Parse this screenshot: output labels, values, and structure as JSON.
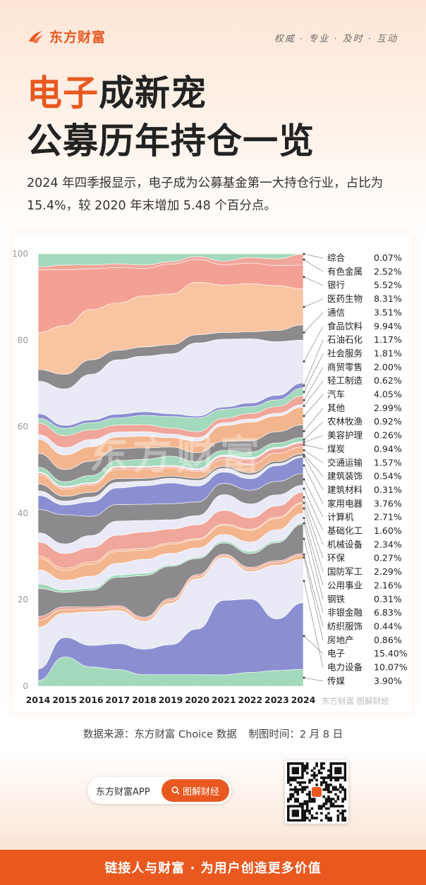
{
  "brand": {
    "name": "东方财富",
    "slogan": "权威 · 专业 · 及时 · 互动"
  },
  "title": {
    "highlight": "电子",
    "line1_rest": "成新宠",
    "line2": "公募历年持仓一览"
  },
  "subtitle": "2024 年四季报显示，电子成为公募基金第一大持仓行业，占比为 15.4%，较 2020 年末增加 5.48 个百分点。",
  "chart_data": {
    "type": "area",
    "stacked": true,
    "x": [
      "2014",
      "2015",
      "2016",
      "2017",
      "2018",
      "2019",
      "2020",
      "2021",
      "2022",
      "2023",
      "2024"
    ],
    "ylim": [
      0,
      100
    ],
    "yticks": [
      0,
      20,
      40,
      60,
      80,
      100
    ],
    "watermark": "东方财富",
    "credit": "东方财富 图解财经",
    "layers": [
      {
        "name": "传媒",
        "color": "#a3d9bc",
        "values": [
          1.2,
          6.0,
          4.0,
          3.5,
          2.5,
          2.5,
          2.5,
          2.5,
          3.0,
          3.5,
          3.9
        ]
      },
      {
        "name": "电子",
        "color": "#8b8fd1",
        "values": [
          2.5,
          4.0,
          4.5,
          5.5,
          5.5,
          6.5,
          10.0,
          16.5,
          16.0,
          11.5,
          15.4
        ]
      },
      {
        "name": "电力设备",
        "color": "#eaeaf6",
        "values": [
          9.0,
          5.0,
          7.0,
          7.0,
          6.0,
          9.0,
          11.0,
          9.5,
          6.0,
          12.0,
          10.07
        ]
      },
      {
        "name": "房地产",
        "color": "#f3b58e",
        "values": [
          1.5,
          0.8,
          0.6,
          0.6,
          0.5,
          0.6,
          0.5,
          0.4,
          0.5,
          0.6,
          0.86
        ]
      },
      {
        "name": "纺织服饰",
        "color": "#f0a69a",
        "values": [
          0.8,
          0.5,
          0.4,
          0.4,
          0.4,
          0.4,
          0.4,
          0.3,
          0.4,
          0.4,
          0.44
        ]
      },
      {
        "name": "非银金融",
        "color": "#8c8a8c",
        "values": [
          6.0,
          3.0,
          3.5,
          6.0,
          9.0,
          7.0,
          3.5,
          2.5,
          3.0,
          4.0,
          6.83
        ]
      },
      {
        "name": "钢铁",
        "color": "#a3d9bc",
        "values": [
          1.0,
          0.5,
          0.4,
          0.5,
          0.5,
          0.3,
          0.3,
          0.4,
          0.5,
          0.4,
          0.31
        ]
      },
      {
        "name": "公用事业",
        "color": "#eaeaf6",
        "values": [
          3.0,
          2.0,
          2.5,
          2.5,
          3.0,
          2.5,
          2.0,
          1.5,
          2.0,
          2.5,
          2.16
        ]
      },
      {
        "name": "国防军工",
        "color": "#f3b58e",
        "values": [
          2.5,
          2.0,
          2.5,
          2.5,
          2.0,
          2.0,
          1.8,
          2.0,
          2.5,
          2.5,
          2.29
        ]
      },
      {
        "name": "环保",
        "color": "#f3b58e",
        "values": [
          0.5,
          0.5,
          0.5,
          0.4,
          0.4,
          0.3,
          0.3,
          0.3,
          0.3,
          0.3,
          0.27
        ]
      },
      {
        "name": "机械设备",
        "color": "#f0a69a",
        "values": [
          3.0,
          3.0,
          3.0,
          3.0,
          3.5,
          3.0,
          3.0,
          3.0,
          2.5,
          2.5,
          2.34
        ]
      },
      {
        "name": "基础化工",
        "color": "#eaeaf6",
        "values": [
          2.0,
          2.0,
          2.5,
          3.0,
          2.5,
          2.0,
          2.0,
          3.5,
          3.0,
          2.5,
          1.6
        ]
      },
      {
        "name": "计算机",
        "color": "#8c8a8c",
        "values": [
          5.0,
          6.0,
          4.0,
          3.5,
          3.5,
          3.5,
          3.0,
          2.5,
          3.0,
          3.0,
          2.71
        ]
      },
      {
        "name": "家用电器",
        "color": "#8b8fd1",
        "values": [
          3.0,
          2.0,
          3.0,
          3.5,
          4.0,
          4.5,
          3.5,
          2.5,
          2.5,
          3.5,
          3.76
        ]
      },
      {
        "name": "建筑材料",
        "color": "#eaeaf6",
        "values": [
          1.0,
          0.8,
          1.0,
          1.2,
          1.0,
          1.0,
          1.2,
          0.8,
          0.8,
          0.5,
          0.31
        ]
      },
      {
        "name": "建筑装饰",
        "color": "#8c8a8c",
        "values": [
          1.5,
          1.0,
          1.0,
          0.8,
          0.6,
          0.5,
          0.5,
          0.5,
          0.5,
          0.5,
          0.54
        ]
      },
      {
        "name": "交通运输",
        "color": "#f3b58e",
        "values": [
          2.0,
          1.5,
          1.5,
          2.0,
          2.0,
          1.8,
          1.5,
          1.5,
          1.8,
          1.8,
          1.57
        ]
      },
      {
        "name": "煤炭",
        "color": "#f0a69a",
        "values": [
          0.4,
          0.3,
          0.3,
          0.4,
          0.4,
          0.3,
          0.3,
          0.6,
          1.2,
          1.0,
          0.94
        ]
      },
      {
        "name": "美容护理",
        "color": "#eaeaf6",
        "values": [
          0.2,
          0.2,
          0.2,
          0.2,
          0.2,
          0.2,
          0.3,
          0.4,
          0.3,
          0.3,
          0.26
        ]
      },
      {
        "name": "农林牧渔",
        "color": "#a3d9bc",
        "values": [
          1.0,
          1.0,
          1.5,
          1.2,
          1.5,
          2.0,
          1.5,
          1.0,
          1.2,
          1.0,
          0.92
        ]
      },
      {
        "name": "其他",
        "color": "#8c8a8c",
        "values": [
          3.0,
          2.5,
          3.0,
          2.5,
          2.5,
          2.0,
          2.0,
          2.0,
          2.5,
          2.5,
          2.99
        ]
      },
      {
        "name": "汽车",
        "color": "#f3b58e",
        "values": [
          3.0,
          3.0,
          3.0,
          2.5,
          2.5,
          2.0,
          2.5,
          3.5,
          4.0,
          3.5,
          4.05
        ]
      },
      {
        "name": "轻工制造",
        "color": "#eaeaf6",
        "values": [
          1.0,
          1.5,
          1.5,
          1.0,
          1.0,
          0.8,
          0.8,
          0.6,
          0.7,
          0.6,
          0.62
        ]
      },
      {
        "name": "商贸零售",
        "color": "#f0a69a",
        "values": [
          2.5,
          2.5,
          2.0,
          1.5,
          1.5,
          1.3,
          1.3,
          1.0,
          1.2,
          1.5,
          2.0
        ]
      },
      {
        "name": "社会服务",
        "color": "#a3d9bc",
        "values": [
          1.0,
          1.5,
          1.5,
          1.5,
          2.0,
          2.5,
          3.0,
          2.0,
          1.5,
          1.5,
          1.81
        ]
      },
      {
        "name": "石油石化",
        "color": "#8b8fd1",
        "values": [
          1.0,
          0.6,
          0.6,
          0.8,
          0.8,
          0.6,
          0.4,
          0.5,
          0.8,
          1.0,
          1.17
        ]
      },
      {
        "name": "食品饮料",
        "color": "#eaeaf6",
        "values": [
          7.0,
          7.5,
          9.5,
          11.5,
          12.0,
          13.0,
          16.0,
          15.0,
          14.0,
          12.0,
          9.94
        ]
      },
      {
        "name": "通信",
        "color": "#8c8a8c",
        "values": [
          2.5,
          3.0,
          3.0,
          2.0,
          2.0,
          2.0,
          1.8,
          1.5,
          1.5,
          2.5,
          3.51
        ]
      },
      {
        "name": "医药生物",
        "color": "#f9c4a2",
        "values": [
          8.0,
          10.0,
          10.5,
          10.0,
          11.0,
          11.0,
          11.5,
          10.5,
          10.5,
          10.0,
          8.31
        ]
      },
      {
        "name": "银行",
        "color": "#f4a195",
        "values": [
          13.5,
          11.5,
          8.5,
          7.5,
          6.0,
          6.5,
          5.0,
          4.5,
          4.5,
          4.5,
          5.52
        ]
      },
      {
        "name": "有色金属",
        "color": "#f0a69a",
        "values": [
          0.6,
          1.0,
          0.8,
          0.8,
          0.7,
          0.5,
          0.6,
          0.8,
          1.2,
          1.5,
          2.52
        ]
      },
      {
        "name": "综合",
        "color": "#a3d9bc",
        "values": [
          2.8,
          2.3,
          2.3,
          2.1,
          2.4,
          1.7,
          0.6,
          1.6,
          0.8,
          1.1,
          0.07
        ]
      }
    ],
    "legend": [
      {
        "name": "综合",
        "value": "0.07%"
      },
      {
        "name": "有色金属",
        "value": "2.52%"
      },
      {
        "name": "银行",
        "value": "5.52%"
      },
      {
        "name": "医药生物",
        "value": "8.31%"
      },
      {
        "name": "通信",
        "value": "3.51%"
      },
      {
        "name": "食品饮料",
        "value": "9.94%"
      },
      {
        "name": "石油石化",
        "value": "1.17%"
      },
      {
        "name": "社会服务",
        "value": "1.81%"
      },
      {
        "name": "商贸零售",
        "value": "2.00%"
      },
      {
        "name": "轻工制造",
        "value": "0.62%"
      },
      {
        "name": "汽车",
        "value": "4.05%"
      },
      {
        "name": "其他",
        "value": "2.99%"
      },
      {
        "name": "农林牧渔",
        "value": "0.92%"
      },
      {
        "name": "美容护理",
        "value": "0.26%"
      },
      {
        "name": "煤炭",
        "value": "0.94%"
      },
      {
        "name": "交通运输",
        "value": "1.57%"
      },
      {
        "name": "建筑装饰",
        "value": "0.54%"
      },
      {
        "name": "建筑材料",
        "value": "0.31%"
      },
      {
        "name": "家用电器",
        "value": "3.76%"
      },
      {
        "name": "计算机",
        "value": "2.71%"
      },
      {
        "name": "基础化工",
        "value": "1.60%"
      },
      {
        "name": "机械设备",
        "value": "2.34%"
      },
      {
        "name": "环保",
        "value": "0.27%"
      },
      {
        "name": "国防军工",
        "value": "2.29%"
      },
      {
        "name": "公用事业",
        "value": "2.16%"
      },
      {
        "name": "钢铁",
        "value": "0.31%"
      },
      {
        "name": "非银金融",
        "value": "6.83%"
      },
      {
        "name": "纺织服饰",
        "value": "0.44%"
      },
      {
        "name": "房地产",
        "value": "0.86%"
      },
      {
        "name": "电子",
        "value": "15.40%"
      },
      {
        "name": "电力设备",
        "value": "10.07%"
      },
      {
        "name": "传媒",
        "value": "3.90%"
      }
    ]
  },
  "source": {
    "left": "数据来源：东方财富 Choice 数据",
    "right": "制图时间：2 月 8 日"
  },
  "app": {
    "name": "东方财富APP",
    "button": "图解财经"
  },
  "footer": "链接人与财富 · 为用户创造更多价值",
  "colors": {
    "accent": "#e8581f"
  }
}
